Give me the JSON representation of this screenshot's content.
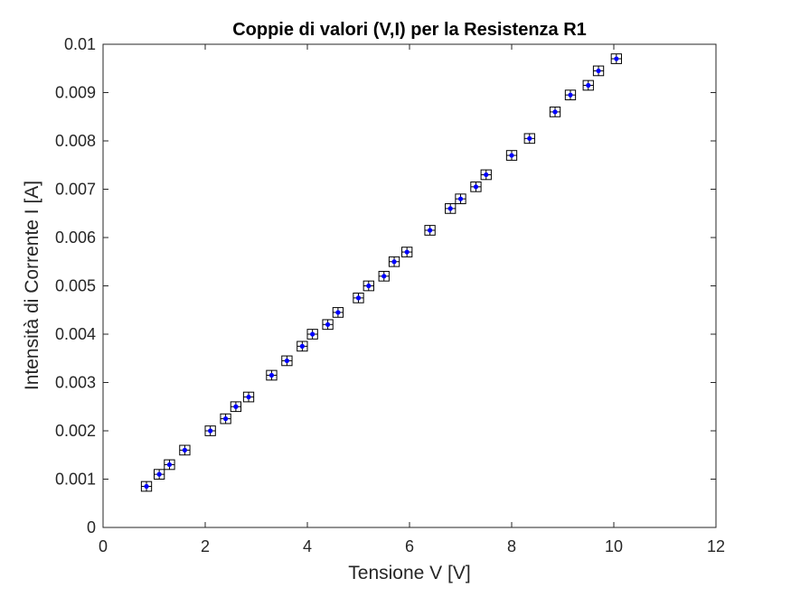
{
  "chart_data": {
    "type": "scatter",
    "title": "Coppie di valori (V,I) per la Resistenza R1",
    "xlabel": "Tensione V [V]",
    "ylabel": "Intensità di Corrente I [A]",
    "xlim": [
      0,
      12
    ],
    "ylim": [
      0,
      0.01
    ],
    "x_ticks": [
      "0",
      "2",
      "4",
      "6",
      "8",
      "10",
      "12"
    ],
    "y_ticks": [
      "0",
      "0.001",
      "0.002",
      "0.003",
      "0.004",
      "0.005",
      "0.006",
      "0.007",
      "0.008",
      "0.009",
      "0.01"
    ],
    "grid": false,
    "marker": "point with error box",
    "marker_color": "#0000ff",
    "error_color": "#000000",
    "x_error": 0.1,
    "y_error": 0.0001,
    "points": [
      {
        "x": 0.85,
        "y": 0.00085
      },
      {
        "x": 1.1,
        "y": 0.0011
      },
      {
        "x": 1.3,
        "y": 0.0013
      },
      {
        "x": 1.6,
        "y": 0.0016
      },
      {
        "x": 2.1,
        "y": 0.002
      },
      {
        "x": 2.4,
        "y": 0.00225
      },
      {
        "x": 2.6,
        "y": 0.0025
      },
      {
        "x": 2.85,
        "y": 0.0027
      },
      {
        "x": 3.3,
        "y": 0.00315
      },
      {
        "x": 3.6,
        "y": 0.00345
      },
      {
        "x": 3.9,
        "y": 0.00375
      },
      {
        "x": 4.1,
        "y": 0.004
      },
      {
        "x": 4.4,
        "y": 0.0042
      },
      {
        "x": 4.6,
        "y": 0.00445
      },
      {
        "x": 5.0,
        "y": 0.00475
      },
      {
        "x": 5.2,
        "y": 0.005
      },
      {
        "x": 5.5,
        "y": 0.0052
      },
      {
        "x": 5.7,
        "y": 0.0055
      },
      {
        "x": 5.95,
        "y": 0.0057
      },
      {
        "x": 6.4,
        "y": 0.00615
      },
      {
        "x": 6.8,
        "y": 0.0066
      },
      {
        "x": 7.0,
        "y": 0.0068
      },
      {
        "x": 7.3,
        "y": 0.00705
      },
      {
        "x": 7.5,
        "y": 0.0073
      },
      {
        "x": 8.0,
        "y": 0.0077
      },
      {
        "x": 8.35,
        "y": 0.00805
      },
      {
        "x": 8.85,
        "y": 0.0086
      },
      {
        "x": 9.15,
        "y": 0.00895
      },
      {
        "x": 9.5,
        "y": 0.00915
      },
      {
        "x": 9.7,
        "y": 0.00945
      },
      {
        "x": 10.05,
        "y": 0.0097
      }
    ]
  }
}
